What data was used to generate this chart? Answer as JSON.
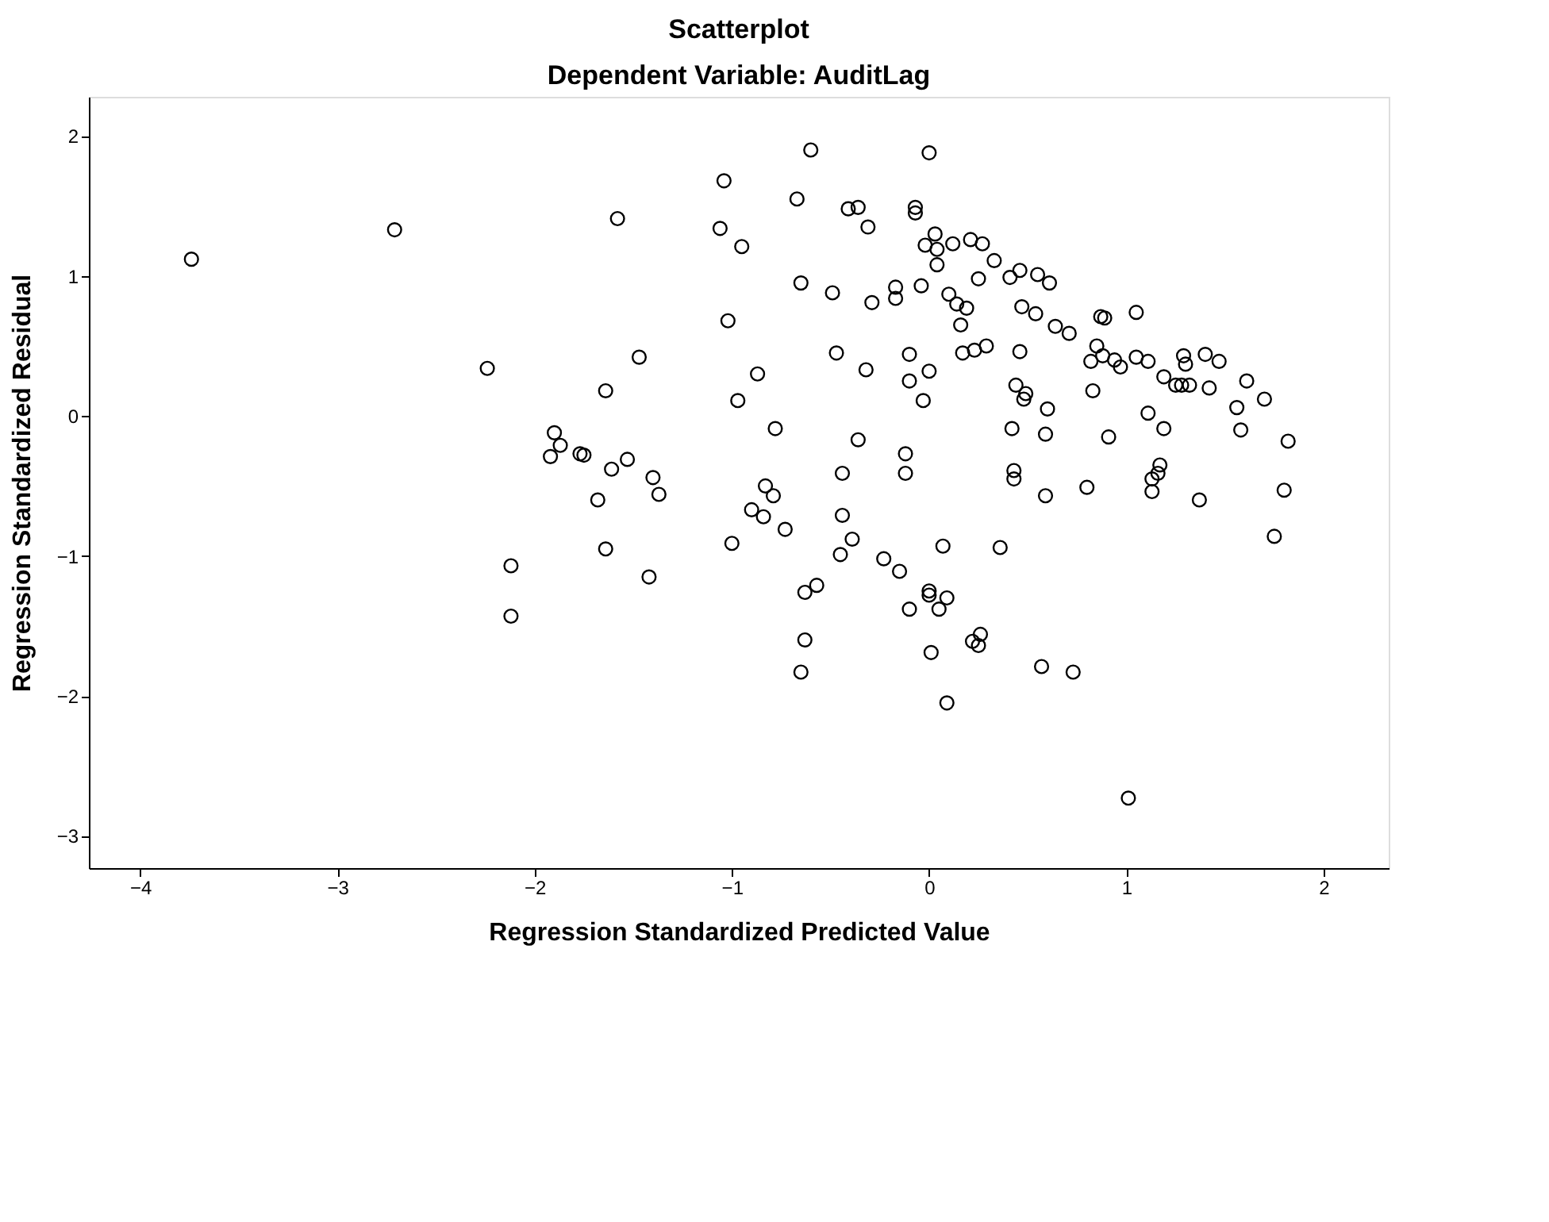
{
  "chart_data": {
    "type": "scatter",
    "title": "Scatterplot",
    "subtitle": "Dependent Variable: AuditLag",
    "xlabel": "Regression Standardized Predicted Value",
    "ylabel": "Regression Standardized Residual",
    "xlim": [
      -4.26,
      2.33
    ],
    "ylim": [
      -3.23,
      2.28
    ],
    "xticks": [
      -4,
      -3,
      -2,
      -1,
      0,
      1,
      2
    ],
    "yticks": [
      -3,
      -2,
      -1,
      0,
      1,
      2
    ],
    "grid": false,
    "legend": false,
    "marker": "circle",
    "series": [
      {
        "color": "#000000",
        "x": [
          -3.74,
          -2.71,
          -2.24,
          -2.12,
          -2.12,
          -1.58,
          -1.92,
          -1.9,
          -1.87,
          -1.77,
          -1.75,
          -1.68,
          -1.64,
          -1.64,
          -1.61,
          -1.53,
          -1.47,
          -1.42,
          -1.4,
          -1.37,
          -1.06,
          -1.04,
          -1.02,
          -1.0,
          -0.97,
          -0.95,
          -0.9,
          -0.87,
          -0.84,
          -0.83,
          -0.79,
          -0.78,
          -0.73,
          -0.67,
          -0.65,
          -0.65,
          -0.63,
          -0.63,
          -0.6,
          -0.57,
          -0.49,
          -0.47,
          -0.45,
          -0.44,
          -0.44,
          -0.41,
          -0.39,
          -0.36,
          -0.36,
          -0.32,
          -0.31,
          -0.29,
          -0.23,
          -0.17,
          -0.17,
          -0.15,
          -0.12,
          -0.12,
          -0.1,
          -0.1,
          -0.1,
          -0.07,
          -0.07,
          -0.04,
          -0.03,
          -0.02,
          0.0,
          0.0,
          0.0,
          0.0,
          0.01,
          0.03,
          0.04,
          0.04,
          0.05,
          0.07,
          0.09,
          0.09,
          0.1,
          0.12,
          0.14,
          0.16,
          0.17,
          0.19,
          0.21,
          0.22,
          0.23,
          0.25,
          0.25,
          0.26,
          0.27,
          0.29,
          0.33,
          0.36,
          0.41,
          0.42,
          0.43,
          0.43,
          0.44,
          0.46,
          0.46,
          0.47,
          0.48,
          0.49,
          0.54,
          0.55,
          0.57,
          0.59,
          0.59,
          0.61,
          0.6,
          0.64,
          0.71,
          0.73,
          0.8,
          0.82,
          0.83,
          0.85,
          0.87,
          0.88,
          0.89,
          0.91,
          0.94,
          0.97,
          1.01,
          1.05,
          1.05,
          1.11,
          1.11,
          1.13,
          1.13,
          1.16,
          1.17,
          1.19,
          1.19,
          1.25,
          1.28,
          1.29,
          1.3,
          1.32,
          1.37,
          1.4,
          1.42,
          1.47,
          1.56,
          1.58,
          1.61,
          1.7,
          1.75,
          1.8,
          1.82
        ],
        "values": [
          1.12,
          1.33,
          0.34,
          -1.07,
          -1.43,
          1.41,
          -0.29,
          -0.12,
          -0.21,
          -0.27,
          -0.28,
          -0.6,
          -0.95,
          0.18,
          -0.38,
          -0.31,
          0.42,
          -1.15,
          -0.44,
          -0.56,
          1.34,
          1.68,
          0.68,
          -0.91,
          0.11,
          1.21,
          -0.67,
          0.3,
          -0.72,
          -0.5,
          -0.57,
          -0.09,
          -0.81,
          1.55,
          0.95,
          -1.83,
          -1.6,
          -1.26,
          1.9,
          -1.21,
          0.88,
          0.45,
          -0.99,
          -0.71,
          -0.41,
          1.48,
          -0.88,
          1.49,
          -0.17,
          0.33,
          1.35,
          0.81,
          -1.02,
          0.84,
          0.92,
          -1.11,
          -0.27,
          -0.41,
          0.44,
          0.25,
          -1.38,
          1.49,
          1.45,
          0.93,
          0.11,
          1.22,
          1.88,
          0.32,
          -1.25,
          -1.28,
          -1.69,
          1.3,
          1.08,
          1.19,
          -1.38,
          -0.93,
          -1.3,
          -2.05,
          0.87,
          1.23,
          0.8,
          0.65,
          0.45,
          0.77,
          1.26,
          -1.61,
          0.47,
          0.98,
          -1.64,
          -1.56,
          1.23,
          0.5,
          1.11,
          -0.94,
          0.99,
          -0.09,
          -0.45,
          -0.39,
          0.22,
          1.04,
          0.46,
          0.78,
          0.12,
          0.16,
          0.73,
          1.01,
          -1.79,
          -0.57,
          -0.13,
          0.95,
          0.05,
          0.64,
          0.59,
          -1.83,
          -0.51,
          0.39,
          0.18,
          0.5,
          0.71,
          0.43,
          0.7,
          -0.15,
          0.4,
          0.35,
          -2.73,
          0.74,
          0.42,
          0.39,
          0.02,
          -0.45,
          -0.54,
          -0.41,
          -0.35,
          0.28,
          -0.09,
          0.22,
          0.22,
          0.43,
          0.37,
          0.22,
          -0.6,
          0.44,
          0.2,
          0.39,
          0.06,
          -0.1,
          0.25,
          0.12,
          -0.86,
          -0.53,
          -0.18
        ]
      }
    ]
  }
}
